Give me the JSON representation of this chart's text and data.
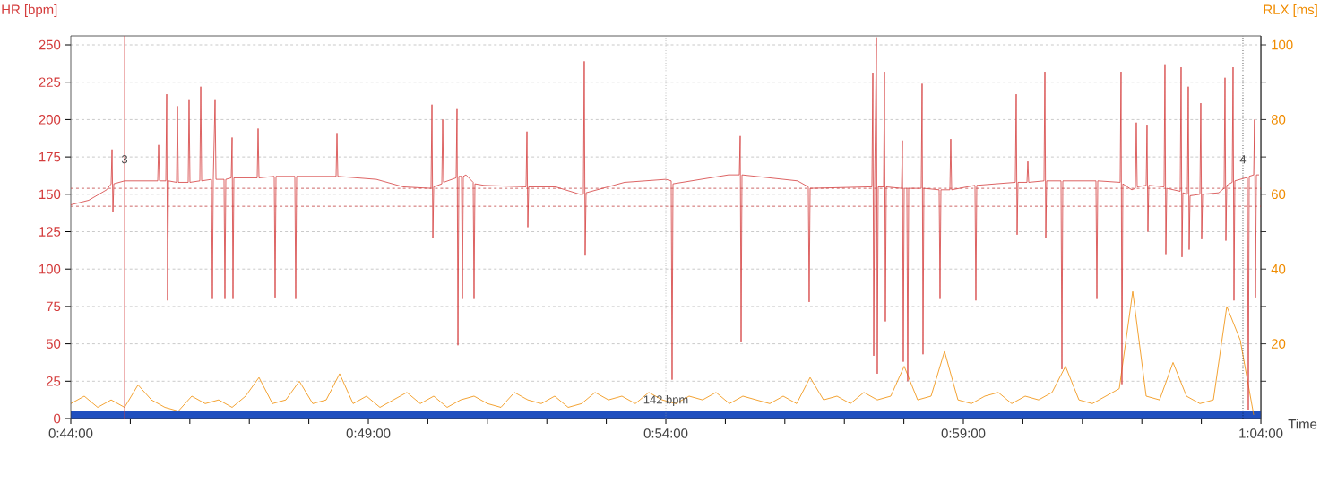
{
  "chart_data": {
    "type": "line",
    "xlabel": "Time",
    "ylabel": "HR [bpm]",
    "y2label": "RLX [ms]",
    "xlim": [
      0.73333,
      1.06667
    ],
    "xticks": [
      {
        "value": 0.73333,
        "label": "0:44:00"
      },
      {
        "value": 0.75,
        "label": null
      },
      {
        "value": 0.76667,
        "label": null
      },
      {
        "value": 0.78333,
        "label": null
      },
      {
        "value": 0.8,
        "label": null
      },
      {
        "value": 0.81667,
        "label": "0:49:00"
      },
      {
        "value": 0.83333,
        "label": null
      },
      {
        "value": 0.85,
        "label": null
      },
      {
        "value": 0.86667,
        "label": null
      },
      {
        "value": 0.88333,
        "label": null
      },
      {
        "value": 0.9,
        "label": "0:54:00"
      },
      {
        "value": 0.91667,
        "label": null
      },
      {
        "value": 0.93333,
        "label": null
      },
      {
        "value": 0.95,
        "label": null
      },
      {
        "value": 0.96667,
        "label": null
      },
      {
        "value": 0.98333,
        "label": "0:59:00"
      },
      {
        "value": 1.0,
        "label": null
      },
      {
        "value": 1.01667,
        "label": null
      },
      {
        "value": 1.03333,
        "label": null
      },
      {
        "value": 1.05,
        "label": null
      },
      {
        "value": 1.06667,
        "label": "1:04:00"
      }
    ],
    "ylim": [
      0,
      256
    ],
    "yticks": [
      0,
      25,
      50,
      75,
      100,
      125,
      150,
      175,
      200,
      225,
      250
    ],
    "y2lim": [
      0,
      102.4
    ],
    "y2ticks": [
      {
        "value": 10,
        "label": null
      },
      20,
      {
        "value": 30,
        "label": null
      },
      40,
      {
        "value": 50,
        "label": null
      },
      60,
      {
        "value": 70,
        "label": null
      },
      80,
      {
        "value": 90,
        "label": null
      },
      100
    ],
    "grid": "y",
    "line_style": "solid",
    "bands": [
      {
        "axis": "y2",
        "from": 0,
        "to": 2,
        "color": "#1f4fbf"
      }
    ],
    "ref_lines": [
      {
        "axis": "y",
        "value": 154,
        "color": "#c04040",
        "line_style": "dashed"
      },
      {
        "axis": "y",
        "value": 142,
        "color": "#c04040",
        "line_style": "dashed"
      },
      {
        "axis": "x",
        "value": 0.9,
        "color": "#999999",
        "line_style": "dotted"
      },
      {
        "axis": "x",
        "value": 0.74839,
        "color": "#d43c3c",
        "line_style": "solid"
      },
      {
        "axis": "x",
        "value": 1.06164,
        "color": "#000000",
        "line_style": "dotted"
      }
    ],
    "annotations": [
      "142 bpm",
      {
        "text": "3",
        "x": 0.74839,
        "y": 170
      },
      {
        "text": "4",
        "x": 1.06164,
        "y": 170
      }
    ],
    "series": [
      {
        "color": "#f08c00",
        "axis": "y2",
        "x": [
          0.73333,
          0.7371,
          0.74086,
          0.74463,
          0.74839,
          0.75216,
          0.75592,
          0.75969,
          0.76345,
          0.76722,
          0.77098,
          0.77475,
          0.77851,
          0.78228,
          0.78604,
          0.78981,
          0.79357,
          0.79734,
          0.8011,
          0.80487,
          0.80863,
          0.8124,
          0.81616,
          0.81993,
          0.82369,
          0.82746,
          0.83122,
          0.83499,
          0.83875,
          0.84252,
          0.84628,
          0.85005,
          0.85381,
          0.85758,
          0.86134,
          0.86511,
          0.86887,
          0.87264,
          0.8764,
          0.88017,
          0.88393,
          0.8877,
          0.89146,
          0.89523,
          0.89899,
          0.90276,
          0.90652,
          0.91029,
          0.91405,
          0.91782,
          0.92158,
          0.92535,
          0.92911,
          0.93288,
          0.93664,
          0.94041,
          0.94417,
          0.94794,
          0.9517,
          0.95547,
          0.95923,
          0.963,
          0.96676,
          0.97053,
          0.97429,
          0.97806,
          0.98182,
          0.98559,
          0.98935,
          0.99312,
          0.99688,
          1.00065,
          1.00441,
          1.00818,
          1.01194,
          1.01571,
          1.01947,
          1.02324,
          1.027,
          1.03077,
          1.03453,
          1.0383,
          1.04206,
          1.04583,
          1.04959,
          1.05336,
          1.05712,
          1.06089,
          1.06465
        ],
        "values": [
          4,
          6,
          3,
          5,
          3,
          9,
          5,
          3,
          2,
          6,
          4,
          5,
          3,
          6,
          11,
          4,
          5,
          10,
          4,
          5,
          12,
          4,
          6,
          3,
          5,
          7,
          4,
          6,
          3,
          5,
          6,
          4,
          3,
          7,
          5,
          4,
          6,
          3,
          4,
          7,
          5,
          6,
          4,
          7,
          5,
          4,
          6,
          5,
          7,
          4,
          6,
          5,
          4,
          6,
          4,
          11,
          5,
          6,
          4,
          7,
          5,
          6,
          14,
          5,
          6,
          18,
          5,
          4,
          6,
          7,
          4,
          6,
          5,
          7,
          14,
          5,
          4,
          6,
          8,
          34,
          6,
          5,
          15,
          6,
          4,
          5,
          30,
          21,
          1
        ]
      },
      {
        "color": "#d43c3c",
        "x": [
          0.73333,
          0.73835,
          0.74337,
          0.74463,
          0.74488,
          0.74513,
          0.74538,
          0.74839,
          0.75768,
          0.75793,
          0.75818,
          0.75994,
          0.76019,
          0.76044,
          0.76069,
          0.76295,
          0.7632,
          0.76345,
          0.76621,
          0.76646,
          0.76671,
          0.76947,
          0.76973,
          0.76998,
          0.77274,
          0.77299,
          0.77324,
          0.77374,
          0.774,
          0.77625,
          0.7765,
          0.77675,
          0.77826,
          0.77851,
          0.77876,
          0.77901,
          0.78554,
          0.78579,
          0.78604,
          0.79031,
          0.79056,
          0.79081,
          0.79608,
          0.79633,
          0.79658,
          0.80763,
          0.80788,
          0.80813,
          0.81892,
          0.82645,
          0.83423,
          0.83449,
          0.83474,
          0.83499,
          0.83725,
          0.8375,
          0.83775,
          0.84126,
          0.84151,
          0.84177,
          0.84202,
          0.84277,
          0.84302,
          0.84327,
          0.84402,
          0.84603,
          0.84628,
          0.84653,
          0.84904,
          0.86084,
          0.86109,
          0.86134,
          0.86159,
          0.86912,
          0.8759,
          0.8769,
          0.87715,
          0.8774,
          0.87766,
          0.88845,
          0.89999,
          0.9015,
          0.90175,
          0.902,
          0.91756,
          0.92058,
          0.92083,
          0.92108,
          0.92133,
          0.93689,
          0.9399,
          0.94015,
          0.94041,
          0.95697,
          0.95772,
          0.95798,
          0.95823,
          0.95848,
          0.95898,
          0.95923,
          0.95948,
          0.96099,
          0.96124,
          0.96149,
          0.96174,
          0.96601,
          0.96626,
          0.96651,
          0.96676,
          0.96751,
          0.96776,
          0.96802,
          0.97153,
          0.97178,
          0.97203,
          0.97228,
          0.97655,
          0.9768,
          0.97705,
          0.97956,
          0.97981,
          0.98006,
          0.98659,
          0.98684,
          0.98709,
          0.99788,
          0.99814,
          0.99839,
          0.99864,
          1.00115,
          1.0014,
          1.00165,
          1.00592,
          1.00617,
          1.00642,
          1.00667,
          1.00893,
          1.01069,
          1.01094,
          1.01119,
          1.02047,
          1.02073,
          1.02098,
          1.02725,
          1.0275,
          1.02775,
          1.028,
          1.03051,
          1.03152,
          1.03177,
          1.03202,
          1.03453,
          1.03478,
          1.03503,
          1.03528,
          1.03955,
          1.0398,
          1.04005,
          1.04031,
          1.04407,
          1.04432,
          1.04457,
          1.04482,
          1.04608,
          1.04633,
          1.04658,
          1.04683,
          1.04959,
          1.04984,
          1.05009,
          1.05035,
          1.05486,
          1.05637,
          1.05662,
          1.05687,
          1.05712,
          1.05863,
          1.05888,
          1.05913,
          1.05938,
          1.06239,
          1.0629,
          1.06315,
          1.0634,
          1.06465,
          1.0649,
          1.06515,
          1.06541,
          1.06616
        ],
        "values": [
          143,
          146,
          153,
          157,
          180,
          138,
          157,
          159,
          159,
          183,
          159,
          159,
          217,
          79,
          159,
          158,
          209,
          158,
          158,
          213,
          158,
          159,
          222,
          159,
          160,
          80,
          160,
          213,
          160,
          160,
          80,
          160,
          161,
          188,
          80,
          161,
          161,
          194,
          161,
          162,
          81,
          162,
          162,
          80,
          162,
          162,
          191,
          162,
          160,
          155,
          154,
          210,
          121,
          155,
          157,
          200,
          158,
          161,
          207,
          49,
          162,
          162,
          80,
          162,
          163,
          158,
          80,
          157,
          156,
          155,
          192,
          128,
          155,
          155,
          150,
          150,
          239,
          109,
          151,
          158,
          160,
          159,
          26,
          157,
          163,
          163,
          189,
          51,
          163,
          159,
          155,
          78,
          154,
          155,
          155,
          231,
          42,
          155,
          255,
          30,
          155,
          155,
          232,
          65,
          155,
          154,
          186,
          38,
          154,
          154,
          25,
          154,
          154,
          224,
          43,
          154,
          153,
          80,
          153,
          153,
          187,
          153,
          156,
          79,
          156,
          158,
          217,
          123,
          158,
          158,
          172,
          158,
          159,
          232,
          121,
          159,
          159,
          159,
          33,
          159,
          159,
          80,
          159,
          158,
          232,
          23,
          157,
          153,
          154,
          198,
          155,
          156,
          196,
          125,
          156,
          155,
          237,
          110,
          154,
          152,
          235,
          108,
          151,
          150,
          222,
          113,
          149,
          150,
          211,
          120,
          150,
          151,
          154,
          228,
          119,
          156,
          158,
          235,
          79,
          159,
          161,
          161,
          6,
          162,
          163,
          200,
          81,
          163,
          163
        ]
      }
    ]
  }
}
